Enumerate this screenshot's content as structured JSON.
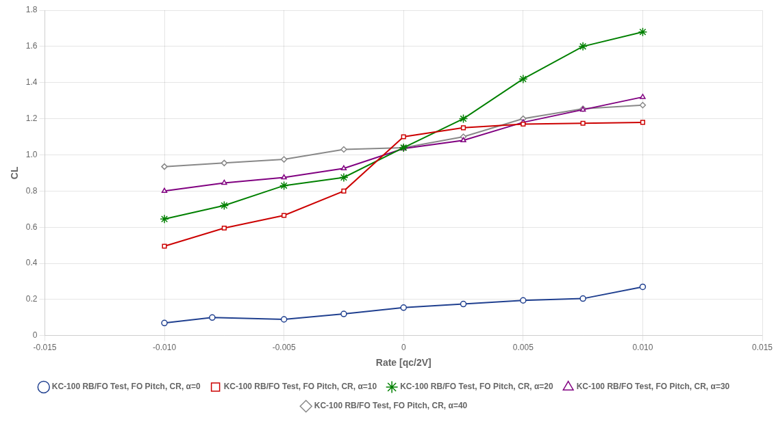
{
  "chart_data": {
    "type": "line",
    "xlabel": "Rate [qc/2V]",
    "ylabel": "CL",
    "xlim": [
      -0.015,
      0.015
    ],
    "ylim": [
      0,
      1.8
    ],
    "xticks": [
      -0.015,
      {
        "value": -0.01,
        "label": "-0.010"
      },
      -0.005,
      0,
      0.005,
      {
        "value": 0.01,
        "label": "0.010"
      },
      0.015
    ],
    "yticks": [
      0,
      0.2,
      0.4,
      0.6,
      0.8,
      {
        "value": 1,
        "label": "1.0"
      },
      1.2,
      1.4,
      1.6,
      1.8
    ],
    "grid": true,
    "legend": "bottom",
    "series": [
      {
        "name": "KC-100 RB/FO Test, FO Pitch, CR, α=0",
        "color": "#1f3f8f",
        "marker": "circle",
        "x": [
          -0.01,
          -0.008,
          -0.005,
          -0.0025,
          0.0,
          0.0025,
          0.005,
          0.0075,
          0.01
        ],
        "values": [
          0.07,
          0.1,
          0.09,
          0.12,
          0.155,
          0.175,
          0.195,
          0.205,
          0.27
        ]
      },
      {
        "name": "KC-100 RB/FO Test, FO Pitch, CR, α=10",
        "color": "#cc0000",
        "marker": "square",
        "x": [
          -0.01,
          -0.0075,
          -0.005,
          -0.0025,
          0.0,
          0.0025,
          0.005,
          0.0075,
          0.01
        ],
        "values": [
          0.495,
          0.595,
          0.665,
          0.8,
          1.1,
          1.15,
          1.17,
          1.175,
          1.18
        ]
      },
      {
        "name": "KC-100 RB/FO Test, FO Pitch, CR, α=20",
        "color": "#008000",
        "marker": "star",
        "x": [
          -0.01,
          -0.0075,
          -0.005,
          -0.0025,
          0.0,
          0.0025,
          0.005,
          0.0075,
          0.01
        ],
        "values": [
          0.645,
          0.72,
          0.83,
          0.875,
          1.04,
          1.2,
          1.42,
          1.6,
          1.68
        ]
      },
      {
        "name": "KC-100 RB/FO Test, FO Pitch, CR, α=30",
        "color": "#800080",
        "marker": "triangle",
        "x": [
          -0.01,
          -0.0075,
          -0.005,
          -0.0025,
          0.0,
          0.0025,
          0.005,
          0.0075,
          0.01
        ],
        "values": [
          0.8,
          0.845,
          0.875,
          0.925,
          1.035,
          1.08,
          1.18,
          1.25,
          1.32
        ]
      },
      {
        "name": "KC-100 RB/FO Test, FO Pitch, CR, α=40",
        "color": "#888888",
        "marker": "diamond",
        "x": [
          -0.01,
          -0.0075,
          -0.005,
          -0.0025,
          0.0,
          0.0025,
          0.005,
          0.0075,
          0.01
        ],
        "values": [
          0.935,
          0.955,
          0.975,
          1.03,
          1.04,
          1.1,
          1.2,
          1.255,
          1.275
        ]
      }
    ]
  }
}
